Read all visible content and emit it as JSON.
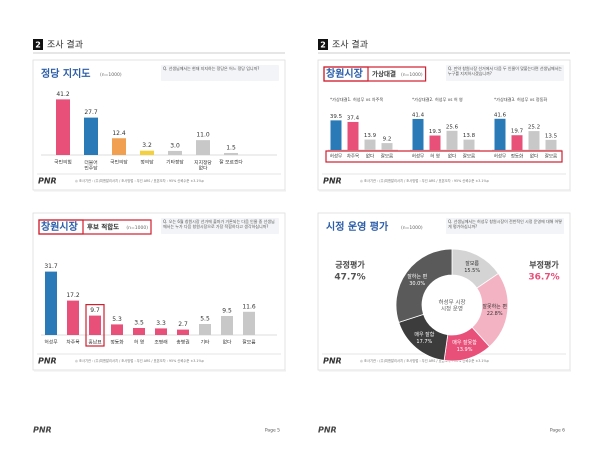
{
  "pages": [
    {
      "header": {
        "number": "2",
        "title": "조사 결과"
      },
      "logo": "PNR",
      "page": "Page 5",
      "slides": [
        {
          "type": "bar",
          "title": "정당 지지도",
          "n": "(n=1000)",
          "question": "Q. 선생님께서는 현재 지지하는 정당은 어느 정당 입니까?",
          "logo": "PNR",
          "note": "◎ 조사기관 : (주)피앤알리서치 / 조사방법 : 무선 ARS / 표본오차 : 95% 신뢰수준 ±3.1%p",
          "categories": [
            "국민의힘",
            "더불어\n민주당",
            "국민의당",
            "정의당",
            "기타정당",
            "지지정당\n없다",
            "잘 모르겠다"
          ],
          "values": [
            41.2,
            27.7,
            12.4,
            3.2,
            3.0,
            11.0,
            1.5
          ],
          "value_labels": [
            "41.2",
            "27.7",
            "12.4",
            "3.2",
            "3.0",
            "11.0",
            "1.5"
          ],
          "colors": [
            "#e8507a",
            "#2a7ab8",
            "#f0a050",
            "#f2d040",
            "#c8c8c8",
            "#c8c8c8",
            "#c8c8c8"
          ]
        },
        {
          "type": "bar",
          "title_boxed": "창원시장",
          "title": "후보 적합도",
          "n": "(n=1000)",
          "question": "Q. 오는 6월 창원시장 선거에 출마가 거론되는 다음 인물 중 선생님께서는 누가 다음 창원시장으로 가장 적합하다고 생각하십니까?",
          "logo": "PNR",
          "note": "◎ 조사기관 : (주)피앤알리서치 / 조사방법 : 무선 ARS / 표본오차 : 95% 신뢰수준 ±3.1%p",
          "categories": [
            "허성무",
            "차주목",
            "홍남표",
            "정동화",
            "허 영",
            "조명래",
            "송병권",
            "기타",
            "없다",
            "잘모름"
          ],
          "values": [
            31.7,
            17.2,
            9.7,
            5.3,
            3.5,
            3.3,
            2.7,
            5.5,
            9.5,
            11.6
          ],
          "value_labels": [
            "31.7",
            "17.2",
            "9.7",
            "5.3",
            "3.5",
            "3.3",
            "2.7",
            "5.5",
            "9.5",
            "11.6"
          ],
          "colors": [
            "#2a7ab8",
            "#e8507a",
            "#e8507a",
            "#e8507a",
            "#e8507a",
            "#e8507a",
            "#e8507a",
            "#c8c8c8",
            "#c8c8c8",
            "#c8c8c8"
          ],
          "boxed_index": 2
        }
      ]
    },
    {
      "header": {
        "number": "2",
        "title": "조사 결과"
      },
      "logo": "PNR",
      "page": "Page 6",
      "slides": [
        {
          "type": "matchup",
          "title_boxed": "창원시장",
          "title": "가상대결",
          "n": "(n=1000)",
          "question": "Q. 만약 창원시장 선거에서 다음 두 인물이 맞붙는다면 선생님께서는 누구를 지지하시겠습니까?",
          "logo": "PNR",
          "note": "◎ 조사기관 : (주)피앤알리서치 / 조사방법 : 무선 ARS / 표본오차 : 95% 신뢰수준 ±3.1%p",
          "groups": [
            {
              "name": "*가상대결1. 허성무 vs 차주목",
              "categories": [
                "허성무",
                "차주목",
                "없다",
                "잘모름"
              ],
              "values": [
                39.5,
                37.4,
                13.9,
                9.2
              ],
              "value_labels": [
                "39.5",
                "37.4",
                "13.9",
                "9.2"
              ]
            },
            {
              "name": "*가상대결2. 허성무 vs 허 영",
              "categories": [
                "허성무",
                "허 영",
                "없다",
                "잘모름"
              ],
              "values": [
                41.4,
                19.3,
                25.6,
                13.8
              ],
              "value_labels": [
                "41.4",
                "19.3",
                "25.6",
                "13.8"
              ]
            },
            {
              "name": "*가상대결3. 허성무 vs 정동화",
              "categories": [
                "허성무",
                "정동화",
                "없다",
                "잘모름"
              ],
              "values": [
                41.6,
                19.7,
                25.2,
                13.5
              ],
              "value_labels": [
                "41.6",
                "19.7",
                "25.2",
                "13.5"
              ]
            }
          ],
          "colors": [
            "#2a7ab8",
            "#e8507a",
            "#c8c8c8",
            "#c8c8c8"
          ]
        },
        {
          "type": "donut",
          "title": "시정 운영 평가",
          "n": "(n=1000)",
          "question": "Q. 선생님께서는 허성무 창원시장이 전반적인 시정 운영에 대해 어떻게 평가하십니까?",
          "logo": "PNR",
          "note": "◎ 조사기관 : (주)피앤알리서치 / 조사방법 : 무선 ARS / 표본오차 : 95% 신뢰수준 ±3.1%p",
          "center": "허성무 시장\n시정 운영",
          "positive": {
            "name": "긍정평가",
            "label": "47.7%"
          },
          "negative": {
            "name": "부정평가",
            "label": "36.7%"
          },
          "segments": [
            {
              "name": "잘모름",
              "value": 15.5,
              "label": "15.5%",
              "color": "#d4d4d4"
            },
            {
              "name": "잘못하는 편",
              "value": 22.8,
              "label": "22.8%",
              "color": "#f4b3c3"
            },
            {
              "name": "매우 잘못함",
              "value": 13.9,
              "label": "13.9%",
              "color": "#e8507a"
            },
            {
              "name": "매우 잘함",
              "value": 17.7,
              "label": "17.7%",
              "color": "#3c3c3c"
            },
            {
              "name": "잘하는 편",
              "value": 30.0,
              "label": "30.0%",
              "color": "#5a5a5a"
            }
          ]
        }
      ]
    }
  ]
}
